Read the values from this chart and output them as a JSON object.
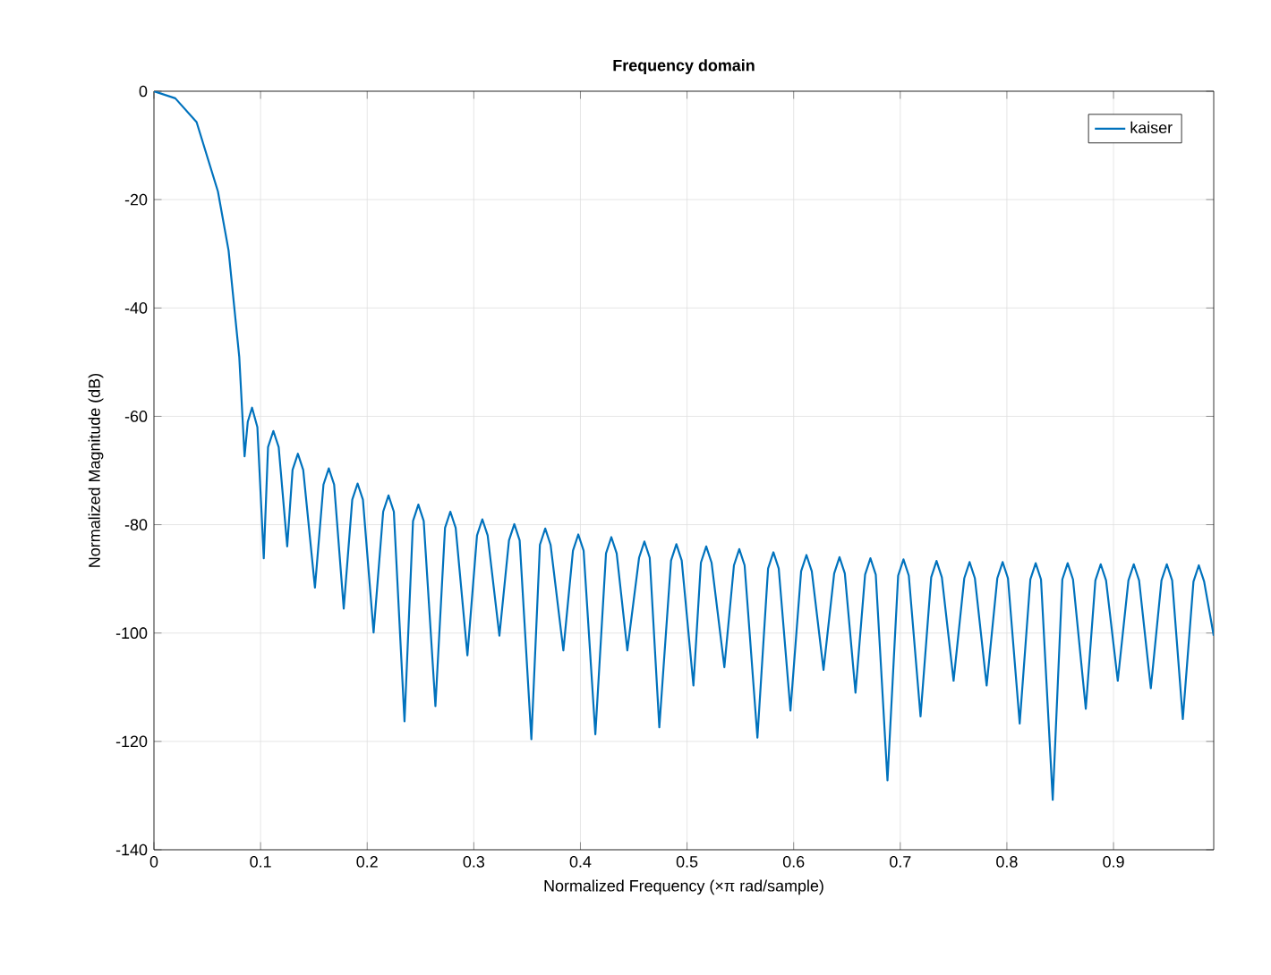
{
  "chart_data": {
    "type": "line",
    "title": "Frequency domain",
    "xlabel": "Normalized Frequency  (×π rad/sample)",
    "ylabel": "Normalized Magnitude (dB)",
    "xlim": [
      0,
      0.994
    ],
    "ylim": [
      -140,
      0
    ],
    "xticks": [
      0,
      0.1,
      0.2,
      0.3,
      0.4,
      0.5,
      0.6,
      0.7,
      0.8,
      0.9
    ],
    "yticks": [
      -140,
      -120,
      -100,
      -80,
      -60,
      -40,
      -20,
      0
    ],
    "grid": true,
    "legend": "top right",
    "marker": "none",
    "line_style": "solid",
    "series": [
      {
        "name": "kaiser",
        "color": "#0072bd",
        "x": [
          0,
          0.02,
          0.04,
          0.06,
          0.07,
          0.08,
          0.085,
          0.088,
          0.092,
          0.097,
          0.103,
          0.107,
          0.112,
          0.117,
          0.125,
          0.13,
          0.135,
          0.14,
          0.151,
          0.159,
          0.164,
          0.169,
          0.178,
          0.186,
          0.191,
          0.196,
          0.206,
          0.215,
          0.22,
          0.225,
          0.235,
          0.243,
          0.248,
          0.253,
          0.264,
          0.273,
          0.278,
          0.283,
          0.294,
          0.303,
          0.308,
          0.313,
          0.324,
          0.333,
          0.338,
          0.343,
          0.354,
          0.362,
          0.367,
          0.372,
          0.384,
          0.393,
          0.398,
          0.403,
          0.414,
          0.424,
          0.429,
          0.434,
          0.444,
          0.455,
          0.46,
          0.465,
          0.474,
          0.485,
          0.49,
          0.495,
          0.506,
          0.513,
          0.518,
          0.523,
          0.535,
          0.544,
          0.549,
          0.554,
          0.566,
          0.576,
          0.581,
          0.586,
          0.597,
          0.607,
          0.612,
          0.617,
          0.628,
          0.638,
          0.643,
          0.648,
          0.658,
          0.667,
          0.672,
          0.677,
          0.688,
          0.698,
          0.703,
          0.708,
          0.719,
          0.729,
          0.734,
          0.739,
          0.75,
          0.76,
          0.765,
          0.77,
          0.781,
          0.791,
          0.796,
          0.801,
          0.812,
          0.822,
          0.827,
          0.832,
          0.843,
          0.852,
          0.857,
          0.862,
          0.874,
          0.883,
          0.888,
          0.893,
          0.904,
          0.914,
          0.919,
          0.924,
          0.935,
          0.945,
          0.95,
          0.955,
          0.965,
          0.975,
          0.98,
          0.985,
          0.994
        ],
        "values": [
          0,
          -1.3,
          -5.7,
          -18.5,
          -29.4,
          -49,
          -67.4,
          -61,
          -58.4,
          -62,
          -86.2,
          -65.7,
          -62.7,
          -65.7,
          -84,
          -69.9,
          -66.9,
          -69.9,
          -91.6,
          -72.6,
          -69.6,
          -72.6,
          -95.5,
          -75.4,
          -72.4,
          -75.4,
          -99.9,
          -77.6,
          -74.6,
          -77.6,
          -116.3,
          -79.3,
          -76.3,
          -79.3,
          -113.5,
          -80.6,
          -77.6,
          -80.6,
          -104.1,
          -82,
          -79,
          -82,
          -100.5,
          -82.9,
          -79.9,
          -82.9,
          -119.6,
          -83.7,
          -80.7,
          -83.7,
          -103.2,
          -84.8,
          -81.8,
          -84.8,
          -118.7,
          -85.3,
          -82.3,
          -85.3,
          -103.2,
          -86.1,
          -83.1,
          -86.1,
          -117.4,
          -86.6,
          -83.6,
          -86.6,
          -109.7,
          -87,
          -84,
          -87,
          -106.3,
          -87.5,
          -84.5,
          -87.5,
          -119.3,
          -88.1,
          -85.1,
          -88.1,
          -114.3,
          -88.6,
          -85.6,
          -88.6,
          -106.8,
          -89,
          -86,
          -89,
          -111,
          -89.2,
          -86.2,
          -89.2,
          -127.2,
          -89.4,
          -86.4,
          -89.4,
          -115.4,
          -89.7,
          -86.7,
          -89.7,
          -108.8,
          -89.9,
          -86.9,
          -89.9,
          -109.7,
          -89.9,
          -86.9,
          -89.9,
          -116.7,
          -90.1,
          -87.1,
          -90.1,
          -130.8,
          -90.1,
          -87.1,
          -90.1,
          -114,
          -90.3,
          -87.3,
          -90.3,
          -108.8,
          -90.3,
          -87.3,
          -90.3,
          -110.2,
          -90.3,
          -87.3,
          -90.3,
          -115.9,
          -90.5,
          -87.5,
          -90.5,
          -100.5
        ]
      }
    ]
  }
}
